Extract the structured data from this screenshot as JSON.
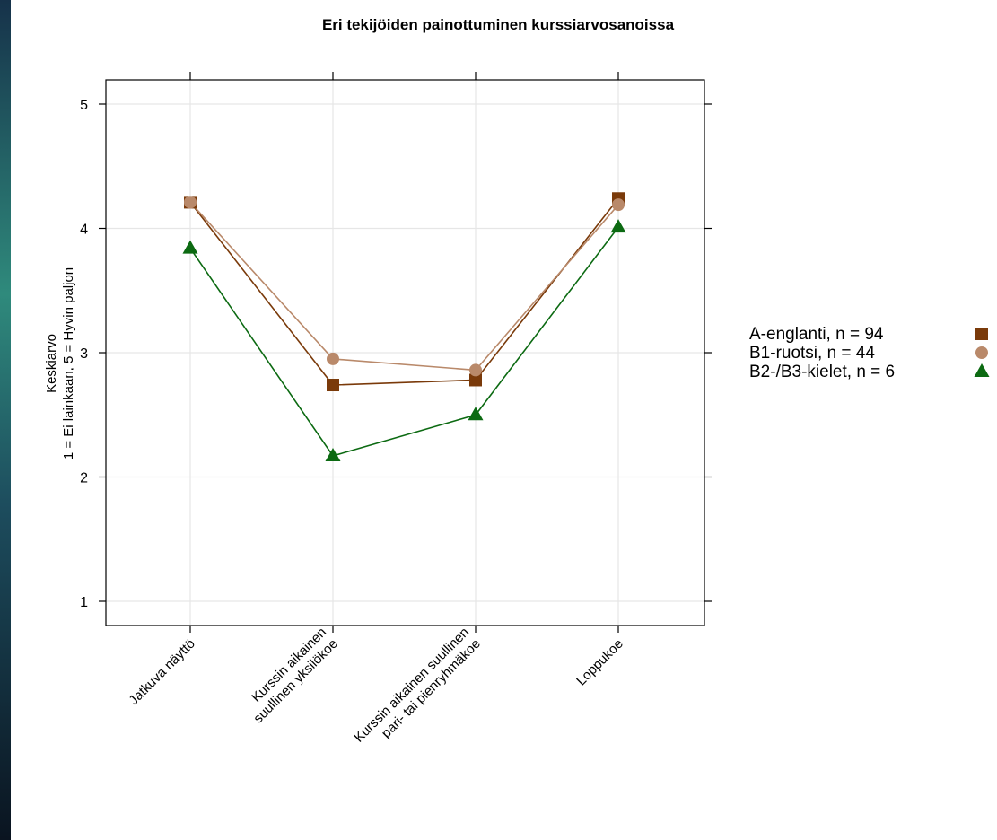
{
  "chart_data": {
    "type": "line",
    "title": "Eri tekijöiden painottuminen kurssiarvosanoissa",
    "ylabel_line1": "Keskiarvo",
    "ylabel_line2": "1 = Ei lainkaan, 5 = Hyvin paljon",
    "xlabel": "",
    "ylim": [
      0.8,
      5.2
    ],
    "yticks": [
      "1",
      "2",
      "3",
      "4",
      "5"
    ],
    "categories": [
      [
        "Jatkuva näyttö"
      ],
      [
        "Kurssin aikainen",
        "suullinen yksilökoe"
      ],
      [
        "Kurssin aikainen suullinen",
        "pari- tai pienryhmäkoe"
      ],
      [
        "Loppukoe"
      ]
    ],
    "grid": true,
    "legend_position": "right",
    "series": [
      {
        "name": "A-englanti, n = 94",
        "marker": "square",
        "color": "#7a3a0a",
        "values": [
          4.21,
          2.74,
          2.78,
          4.24
        ]
      },
      {
        "name": "B1-ruotsi, n = 44",
        "marker": "circle",
        "color": "#b9896a",
        "values": [
          4.21,
          2.95,
          2.86,
          4.19
        ]
      },
      {
        "name": "B2-/B3-kielet, n = 6",
        "marker": "triangle",
        "color": "#0c6a12",
        "values": [
          3.84,
          2.17,
          2.5,
          4.01
        ]
      }
    ]
  }
}
